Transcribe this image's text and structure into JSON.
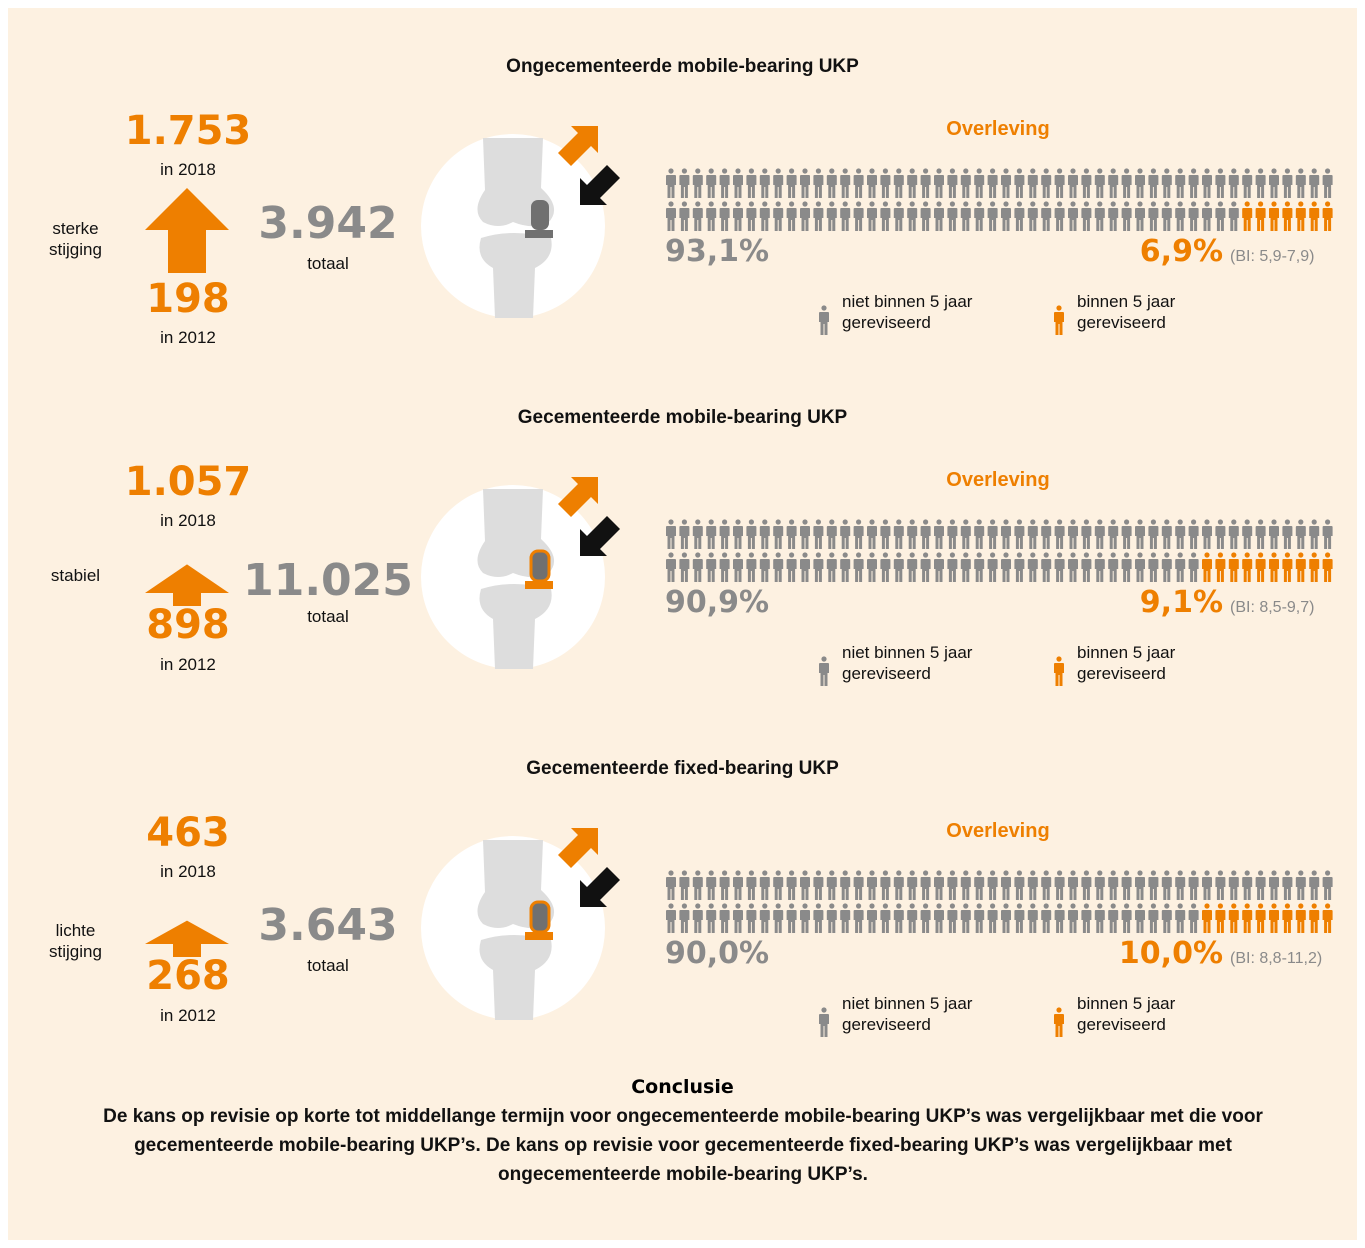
{
  "sections": [
    {
      "title": "Ongecementeerde mobile-bearing UKP",
      "high": "1.753",
      "high_label": "in 2018",
      "trend": "sterke\nstijging",
      "low": "198",
      "low_label": "in 2012",
      "total": "3.942",
      "total_label": "totaal",
      "survival_title": "Overleving",
      "survived": "93,1%",
      "revised": "6,9%",
      "ci": "(BI: 5,9-7,9)",
      "legend_survived": "niet binnen 5 jaar\ngereviseerd",
      "legend_revised": "binnen 5 jaar\ngereviseerd"
    },
    {
      "title": "Gecementeerde mobile-bearing UKP",
      "high": "1.057",
      "high_label": "in 2018",
      "trend": "stabiel",
      "low": "898",
      "low_label": "in 2012",
      "total": "11.025",
      "total_label": "totaal",
      "survival_title": "Overleving",
      "survived": "90,9%",
      "revised": "9,1%",
      "ci": "(BI: 8,5-9,7)",
      "legend_survived": "niet binnen 5 jaar\ngereviseerd",
      "legend_revised": "binnen 5 jaar\ngereviseerd"
    },
    {
      "title": "Gecementeerde fixed-bearing UKP",
      "high": "463",
      "high_label": "in 2018",
      "trend": "lichte\nstijging",
      "low": "268",
      "low_label": "in 2012",
      "total": "3.643",
      "total_label": "totaal",
      "survival_title": "Overleving",
      "survived": "90,0%",
      "revised": "10,0%",
      "ci": "(BI: 8,8-11,2)",
      "legend_survived": "niet binnen 5 jaar\ngereviseerd",
      "legend_revised": "binnen 5 jaar\ngereviseerd"
    }
  ],
  "conclusion": {
    "title": "Conclusie",
    "text": "De kans op revisie op korte tot middellange termijn voor ongecementeerde mobile-bearing UKP’s was vergelijkbaar met die voor gecementeerde mobile-bearing UKP’s. De kans op revisie voor gecementeerde fixed-bearing UKP’s was vergelijkbaar met ongecementeerde mobile-bearing UKP’s."
  }
}
